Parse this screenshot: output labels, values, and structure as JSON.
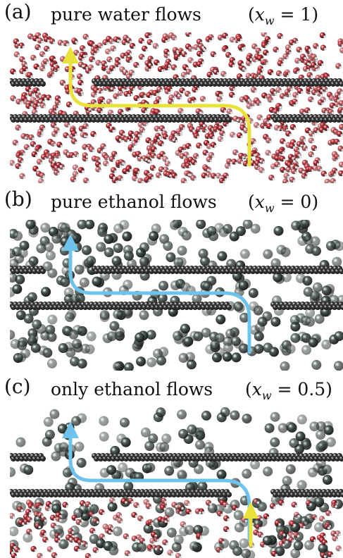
{
  "panels": [
    {
      "label": "(a)",
      "title": "pure water flows",
      "condition": {
        "var": "x",
        "sub": "w",
        "value": "= 1)"
      },
      "colors": {
        "water": "#c8262e",
        "ethanol": null,
        "arrow": [
          "#e8e23a"
        ]
      }
    },
    {
      "label": "(b)",
      "title": "pure ethanol flows",
      "condition": {
        "var": "x",
        "sub": "w",
        "value": "= 0)"
      },
      "colors": {
        "water": null,
        "ethanol": "#46574f",
        "arrow": [
          "#6ec3ec"
        ]
      }
    },
    {
      "label": "(c)",
      "title": "only ethanol flows",
      "condition": {
        "var": "x",
        "sub": "w",
        "value": "= 0.5)"
      },
      "colors": {
        "water": "#c8262e",
        "ethanol": "#46574f",
        "arrow": [
          "#6ec3ec",
          "#e8e23a"
        ]
      }
    }
  ],
  "graphene_color": "#3a3a3a"
}
